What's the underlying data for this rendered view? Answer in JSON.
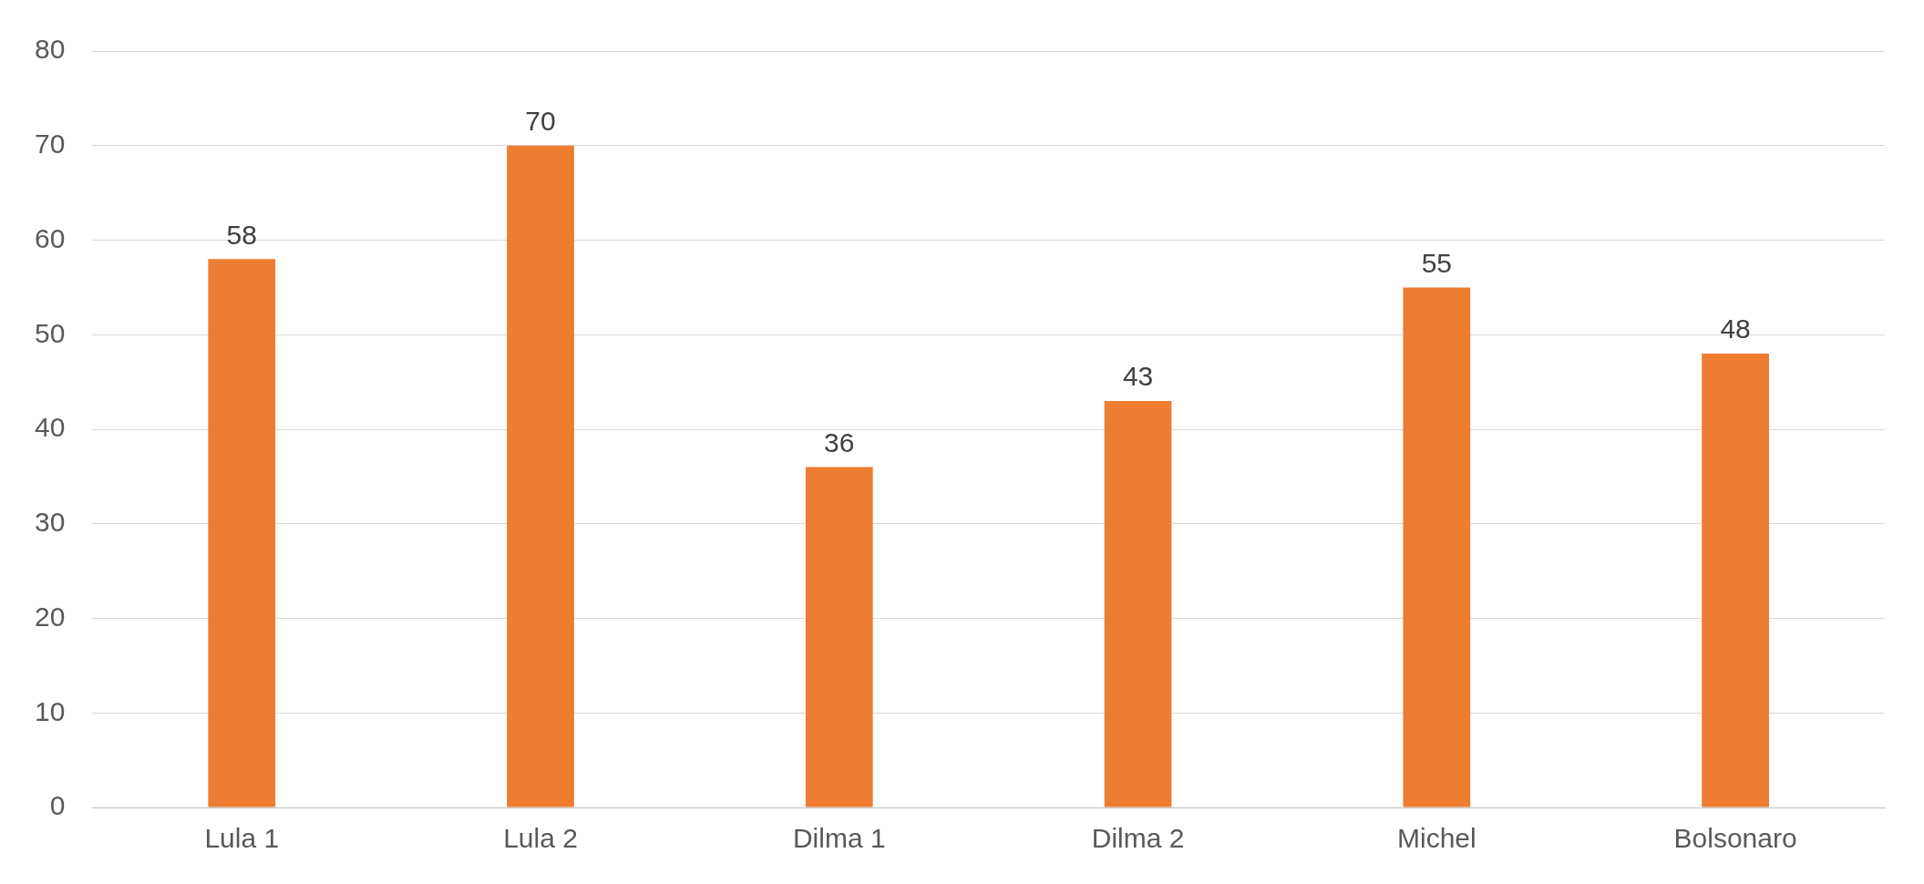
{
  "chart_data": {
    "type": "bar",
    "categories": [
      "Lula 1",
      "Lula 2",
      "Dilma 1",
      "Dilma 2",
      "Michel",
      "Bolsonaro"
    ],
    "values": [
      58,
      70,
      36,
      43,
      55,
      48
    ],
    "color": "#ed7d31",
    "ylim": [
      0,
      80
    ],
    "yticks": [
      0,
      10,
      20,
      30,
      40,
      50,
      60,
      70,
      80
    ],
    "grid": "y",
    "data_labels": true,
    "legend": false
  }
}
